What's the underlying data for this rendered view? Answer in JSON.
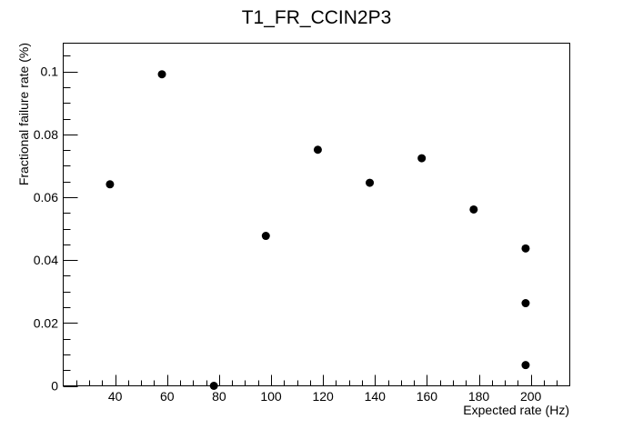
{
  "chart_data": {
    "type": "scatter",
    "title": "T1_FR_CCIN2P3",
    "xlabel": "Expected rate (Hz)",
    "ylabel": "Fractional failure rate (%)",
    "xlim": [
      20,
      215
    ],
    "ylim": [
      0,
      0.109
    ],
    "grid": false,
    "legend": "none",
    "x_ticks": [
      40,
      60,
      80,
      100,
      120,
      140,
      160,
      180,
      200
    ],
    "x_tick_labels": [
      "40",
      "60",
      "80",
      "100",
      "120",
      "140",
      "160",
      "180",
      "200"
    ],
    "y_ticks": [
      0,
      0.02,
      0.04,
      0.06,
      0.08,
      0.1
    ],
    "y_tick_labels": [
      "0",
      "0.02",
      "0.04",
      "0.06",
      "0.08",
      "0.1"
    ],
    "point_color": "#000000",
    "points": [
      {
        "x": 38,
        "y": 0.0641
      },
      {
        "x": 58,
        "y": 0.0991
      },
      {
        "x": 78,
        "y": 0.0
      },
      {
        "x": 98,
        "y": 0.0477
      },
      {
        "x": 118,
        "y": 0.0751
      },
      {
        "x": 138,
        "y": 0.0646
      },
      {
        "x": 158,
        "y": 0.0724
      },
      {
        "x": 178,
        "y": 0.0561
      },
      {
        "x": 198,
        "y": 0.0437
      },
      {
        "x": 198,
        "y": 0.0263
      },
      {
        "x": 198,
        "y": 0.0066
      }
    ]
  }
}
